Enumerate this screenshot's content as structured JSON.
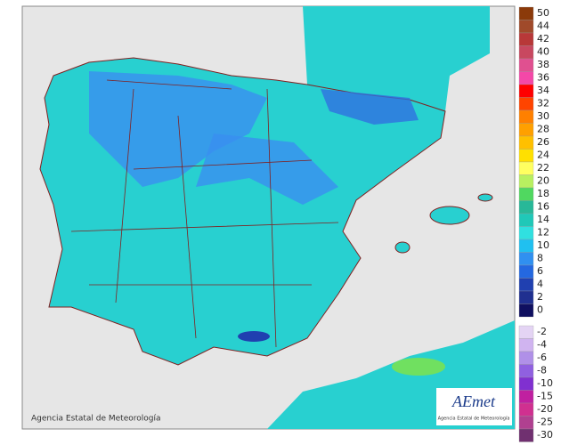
{
  "map": {
    "credit": "Agencia Estatal de Meteorología",
    "logo": {
      "name": "AEmet",
      "subtitle": "Agencia Estatal de Meteorología"
    },
    "legend": {
      "entries": [
        {
          "value": 50,
          "color": "#8b3a0a"
        },
        {
          "value": 44,
          "color": "#a04a2a"
        },
        {
          "value": 42,
          "color": "#b83838"
        },
        {
          "value": 40,
          "color": "#c84860"
        },
        {
          "value": 38,
          "color": "#e05090"
        },
        {
          "value": 36,
          "color": "#f448a8"
        },
        {
          "value": 34,
          "color": "#ff0000"
        },
        {
          "value": 32,
          "color": "#ff4400"
        },
        {
          "value": 30,
          "color": "#ff8000"
        },
        {
          "value": 28,
          "color": "#ffa000"
        },
        {
          "value": 26,
          "color": "#ffc000"
        },
        {
          "value": 24,
          "color": "#ffe000"
        },
        {
          "value": 22,
          "color": "#ffff60"
        },
        {
          "value": 20,
          "color": "#b8f060"
        },
        {
          "value": 18,
          "color": "#50d860"
        },
        {
          "value": 16,
          "color": "#28b898"
        },
        {
          "value": 14,
          "color": "#20c8b8"
        },
        {
          "value": 12,
          "color": "#30e0e0"
        },
        {
          "value": 10,
          "color": "#20c0f0"
        },
        {
          "value": 8,
          "color": "#3090f0"
        },
        {
          "value": 6,
          "color": "#2468e0"
        },
        {
          "value": 4,
          "color": "#2040b0"
        },
        {
          "value": 2,
          "color": "#203090"
        },
        {
          "value": 0,
          "color": "#101060"
        },
        {
          "value": -2,
          "color": "#e4d4f4"
        },
        {
          "value": -4,
          "color": "#d0b4f0"
        },
        {
          "value": -6,
          "color": "#b090e8"
        },
        {
          "value": -8,
          "color": "#9060e0"
        },
        {
          "value": -10,
          "color": "#8030d0"
        },
        {
          "value": -15,
          "color": "#c020a0"
        },
        {
          "value": -20,
          "color": "#d03090"
        },
        {
          "value": -25,
          "color": "#b04090"
        },
        {
          "value": -30,
          "color": "#703070"
        }
      ]
    }
  }
}
